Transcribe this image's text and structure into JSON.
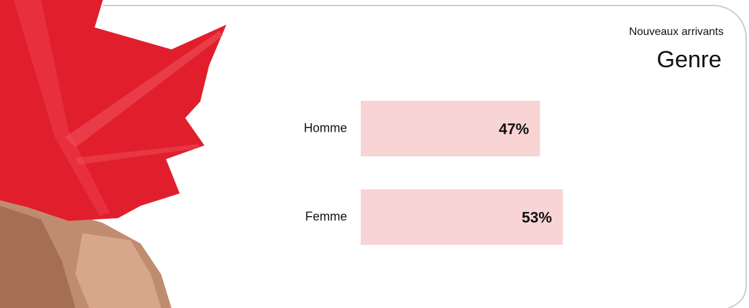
{
  "chart_data": {
    "type": "bar",
    "orientation": "horizontal",
    "subtitle": "Nouveaux arrivants",
    "title": "Genre",
    "categories": [
      "Homme",
      "Femme"
    ],
    "values": [
      47,
      53
    ],
    "value_labels": [
      "47%",
      "53%"
    ],
    "color": "#f8d4d4"
  }
}
